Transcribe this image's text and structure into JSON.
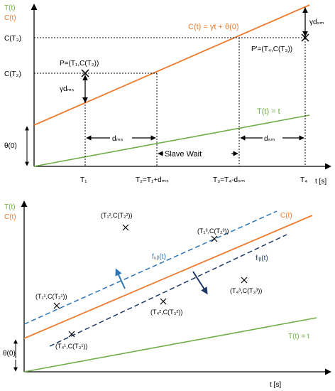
{
  "colors": {
    "c_line": "#ED7D31",
    "t_line": "#70AD47",
    "fub": "#2E75B6",
    "flb": "#1F3864",
    "axis": "#000000"
  },
  "top": {
    "y_axis_label_t": "T(t)",
    "y_axis_label_c": "C(t)",
    "x_axis_unit": "t [s]",
    "c_eq": "C(t) = γt + θ(0)",
    "t_eq": "T(t) = t",
    "theta0": "θ(0)",
    "slave_wait": "Slave Wait",
    "point_P": "P=(T₁,C(T₂))",
    "point_Pprime": "P'=(T₄,C(T₃))",
    "c_t3": "C(T₃)",
    "c_t2": "C(T₂)",
    "gamma_dsm": "γdₛₘ",
    "gamma_dms": "γdₘₛ",
    "d_ms": "dₘₛ",
    "d_sm": "dₛₘ",
    "x_ticks": [
      "T₁",
      "T₂=T₁+dₘₛ",
      "T₃=T₄-dₛₘ",
      "T₄"
    ]
  },
  "bottom": {
    "y_axis_label_t": "T(t)",
    "y_axis_label_c": "C(t)",
    "x_axis_unit": "t [s]",
    "c_label": "C(t)",
    "t_eq": "T(t) = t",
    "theta0": "θ(0)",
    "fub": "fᵤᵦ(t)",
    "flb": "fₗᵦ(t)",
    "points": [
      "(T₁²,C(T₂²))",
      "(T₁³,C(T₂³))",
      "(T₁¹,C(T₂¹))",
      "(T₄²,C(T₃²))",
      "(T₄³,C(T₃³))",
      "(T₄¹,C(T₃¹))"
    ]
  }
}
